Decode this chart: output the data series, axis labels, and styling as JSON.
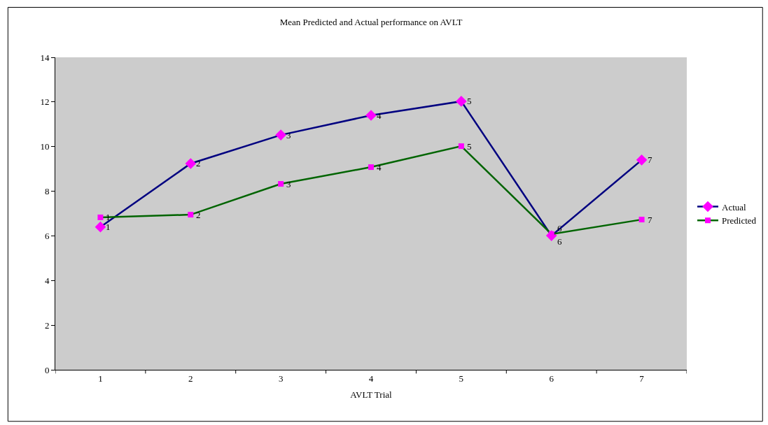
{
  "chart_data": {
    "type": "line",
    "title": "Mean Predicted and Actual performance on AVLT",
    "xlabel": "AVLT Trial",
    "categories": [
      "1",
      "2",
      "3",
      "4",
      "5",
      "6",
      "7"
    ],
    "series": [
      {
        "name": "Actual",
        "color": "#000080",
        "colors": [
          "#ff00ff",
          "#ff00ff",
          "#ff00ff",
          "#ff00ff",
          "#ff00ff",
          "#ff00ff",
          "#ff00ff"
        ],
        "marker": "diamond",
        "values": [
          6.4,
          9.24,
          10.52,
          11.4,
          12.03,
          6.01,
          9.4
        ]
      },
      {
        "name": "Predicted",
        "color": "#006400",
        "colors": [
          "#ff00ff",
          "#ff00ff",
          "#ff00ff",
          "#ff00ff",
          "#ff00ff",
          "#ff00ff",
          "#ff00ff"
        ],
        "marker": "square",
        "values": [
          6.83,
          6.95,
          8.33,
          9.08,
          10.02,
          6.08,
          6.73
        ]
      }
    ],
    "annotations": [
      {
        "text": "1",
        "x": "1",
        "y": 6.4
      },
      {
        "text": "2",
        "x": "2",
        "y": 9.24
      },
      {
        "text": "3",
        "x": "3",
        "y": 10.52
      },
      {
        "text": "4",
        "x": "4",
        "y": 11.4
      },
      {
        "text": "5",
        "x": "5",
        "y": 12.03
      },
      {
        "text": "6",
        "x": "6",
        "y": 6.01
      },
      {
        "text": "7",
        "x": "7",
        "y": 9.4
      },
      {
        "text": "1",
        "x": "1",
        "y": 6.83
      },
      {
        "text": "2",
        "x": "2",
        "y": 6.95
      },
      {
        "text": "3",
        "x": "3",
        "y": 8.33
      },
      {
        "text": "4",
        "x": "4",
        "y": 9.08
      },
      {
        "text": "5",
        "x": "5",
        "y": 10.02
      },
      {
        "text": "6",
        "x": "6",
        "y": 6.08
      },
      {
        "text": "7",
        "x": "7",
        "y": 6.73
      }
    ],
    "ylim": [
      0,
      14
    ],
    "yticks": [
      0,
      2,
      4,
      6,
      8,
      10,
      12,
      14
    ],
    "grid": false,
    "legend": "right",
    "line_style": "solid"
  }
}
